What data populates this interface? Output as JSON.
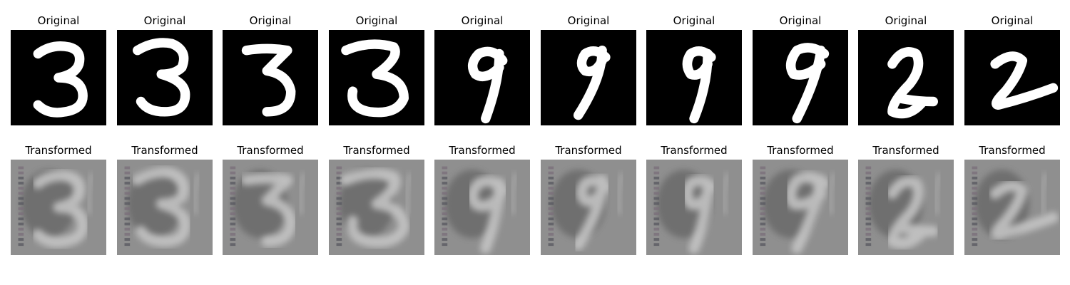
{
  "rows": [
    {
      "name": "original",
      "titles": [
        "Original",
        "Original",
        "Original",
        "Original",
        "Original",
        "Original",
        "Original",
        "Original",
        "Original",
        "Original"
      ]
    },
    {
      "name": "transformed",
      "titles": [
        "Transformed",
        "Transformed",
        "Transformed",
        "Transformed",
        "Transformed",
        "Transformed",
        "Transformed",
        "Transformed",
        "Transformed",
        "Transformed"
      ]
    }
  ],
  "digits": [
    "3",
    "3",
    "3",
    "3",
    "9",
    "9",
    "9",
    "9",
    "2",
    "2"
  ],
  "colors": {
    "original_bg": "#000000",
    "original_stroke": "#ffffff",
    "transformed_bg": "#8f8f8f",
    "transformed_stroke": "#c8c8c8",
    "transformed_dark": "#4a4a4a"
  }
}
